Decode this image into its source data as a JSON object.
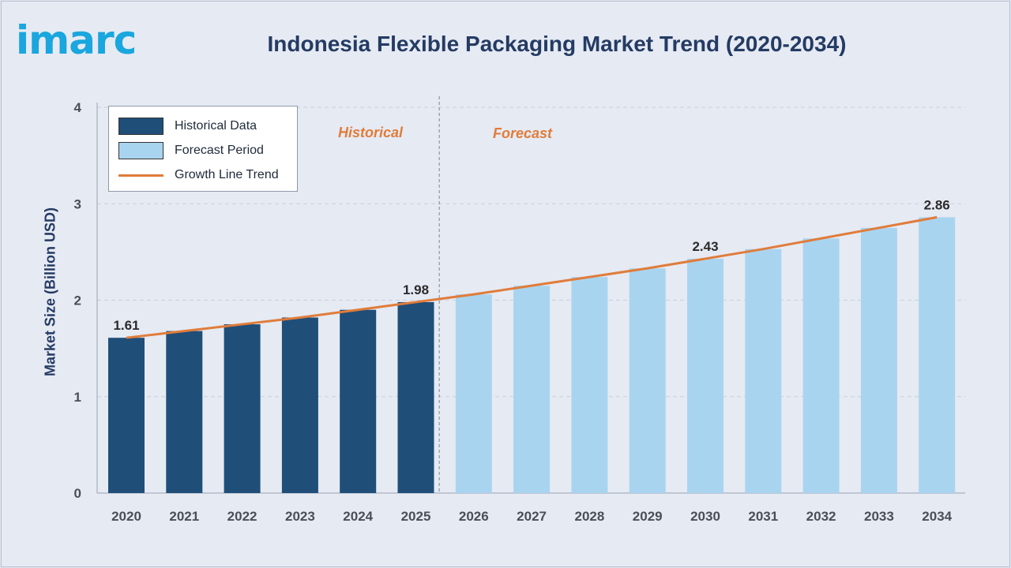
{
  "brand": {
    "logo_text": "imarc"
  },
  "chart_data": {
    "type": "bar",
    "title": "Indonesia Flexible Packaging Market Trend (2020-2034)",
    "ylabel": "Market Size (Billion USD)",
    "xlabel": "",
    "ylim": [
      0,
      4
    ],
    "yticks": [
      "0",
      "1",
      "2",
      "3",
      "4"
    ],
    "grid": true,
    "categories": [
      "2020",
      "2021",
      "2022",
      "2023",
      "2024",
      "2025",
      "2026",
      "2027",
      "2028",
      "2029",
      "2030",
      "2031",
      "2032",
      "2033",
      "2034"
    ],
    "values": [
      1.61,
      1.68,
      1.75,
      1.82,
      1.9,
      1.98,
      2.06,
      2.15,
      2.24,
      2.33,
      2.43,
      2.53,
      2.64,
      2.75,
      2.86
    ],
    "historical_count": 6,
    "series": [
      {
        "name": "Historical Data",
        "color": "#1f4e79",
        "range": [
          "2020",
          "2025"
        ]
      },
      {
        "name": "Forecast Period",
        "color": "#a9d4ef",
        "range": [
          "2026",
          "2034"
        ]
      },
      {
        "name": "Growth Line Trend",
        "color": "#e07c3a",
        "kind": "line"
      }
    ],
    "data_labels": [
      {
        "category": "2020",
        "text": "1.61"
      },
      {
        "category": "2025",
        "text": "1.98"
      },
      {
        "category": "2030",
        "text": "2.43"
      },
      {
        "category": "2034",
        "text": "2.86"
      }
    ],
    "annotations": {
      "historical": "Historical",
      "forecast": "Forecast"
    },
    "legend_position": "top-left"
  }
}
